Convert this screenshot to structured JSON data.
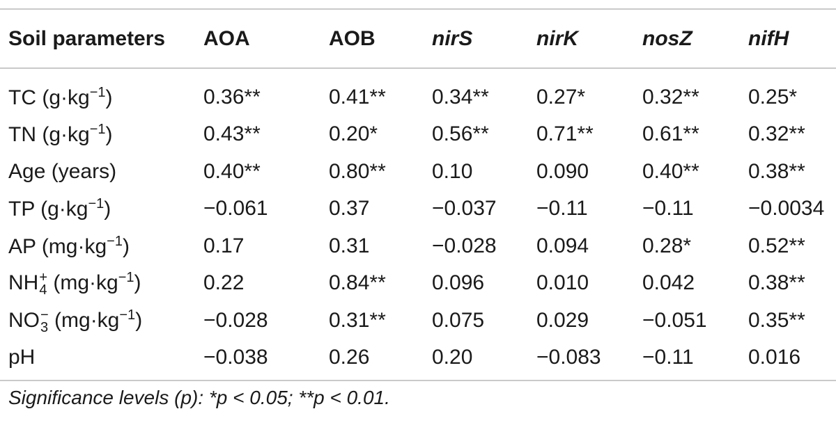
{
  "table": {
    "headers": [
      "Soil parameters",
      "AOA",
      "AOB",
      "nirS",
      "nirK",
      "nosZ",
      "nifH"
    ],
    "rows": [
      {
        "param": {
          "base": "TC (g·kg",
          "sup": "−1",
          "after": ")"
        },
        "values": [
          "0.36**",
          "0.41**",
          "0.34**",
          "0.27*",
          "0.32**",
          "0.25*"
        ]
      },
      {
        "param": {
          "base": "TN (g·kg",
          "sup": "−1",
          "after": ")"
        },
        "values": [
          "0.43**",
          "0.20*",
          "0.56**",
          "0.71**",
          "0.61**",
          "0.32**"
        ]
      },
      {
        "param": {
          "base": "Age (years)"
        },
        "values": [
          "0.40**",
          "0.80**",
          "0.10",
          "0.090",
          "0.40**",
          "0.38**"
        ]
      },
      {
        "param": {
          "base": "TP (g·kg",
          "sup": "−1",
          "after": ")"
        },
        "values": [
          "−0.061",
          "0.37",
          "−0.037",
          "−0.11",
          "−0.11",
          "−0.0034"
        ]
      },
      {
        "param": {
          "base": "AP (mg·kg",
          "sup": "−1",
          "after": ")"
        },
        "values": [
          "0.17",
          "0.31",
          "−0.028",
          "0.094",
          "0.28*",
          "0.52**"
        ]
      },
      {
        "param": {
          "base": "NH",
          "ion_sup": "+",
          "ion_sub": "4",
          "unit": " (mg·kg",
          "sup": "−1",
          "after": ")"
        },
        "values": [
          "0.22",
          "0.84**",
          "0.096",
          "0.010",
          "0.042",
          "0.38**"
        ]
      },
      {
        "param": {
          "base": "NO",
          "ion_sup": "−",
          "ion_sub": "3",
          "unit": " (mg·kg",
          "sup": "−1",
          "after": ")"
        },
        "values": [
          "−0.028",
          "0.31**",
          "0.075",
          "0.029",
          "−0.051",
          "0.35**"
        ]
      },
      {
        "param": {
          "base": "pH"
        },
        "values": [
          "−0.038",
          "0.26",
          "0.20",
          "−0.083",
          "−0.11",
          "0.016"
        ]
      }
    ]
  },
  "footnote": "Significance levels (p): *p < 0.05; **p < 0.01."
}
